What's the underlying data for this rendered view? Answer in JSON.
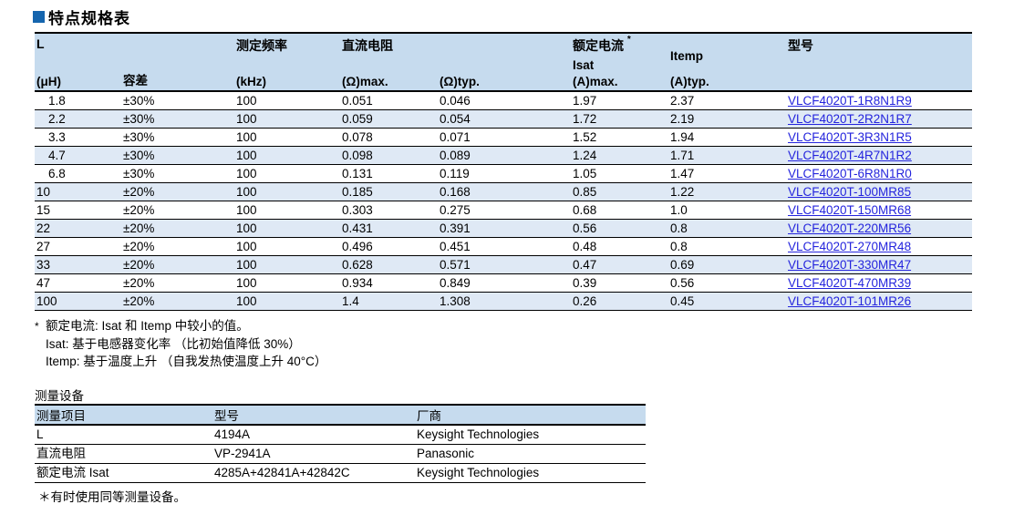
{
  "page_title": "特点规格表",
  "accent_color": "#1565ae",
  "link_color": "#2424dd",
  "spec_table": {
    "header": {
      "col1": {
        "line1": "L",
        "line3": "(μH)"
      },
      "col2": {
        "line3": "容差"
      },
      "col3": {
        "line1": "测定频率",
        "line3": "(kHz)"
      },
      "col4": {
        "line1": "直流电阻",
        "line3": "(Ω)max."
      },
      "col5": {
        "line3": "(Ω)typ."
      },
      "col6": {
        "line1": "额定电流",
        "star": "*",
        "line2": "Isat",
        "line3": "(A)max."
      },
      "col7": {
        "line2": "Itemp",
        "line3": "(A)typ."
      },
      "col8": {
        "line1": "型号"
      }
    },
    "rows": [
      [
        "1.8",
        "±30%",
        "100",
        "0.051",
        "0.046",
        "1.97",
        "2.37",
        "VLCF4020T-1R8N1R9"
      ],
      [
        "2.2",
        "±30%",
        "100",
        "0.059",
        "0.054",
        "1.72",
        "2.19",
        "VLCF4020T-2R2N1R7"
      ],
      [
        "3.3",
        "±30%",
        "100",
        "0.078",
        "0.071",
        "1.52",
        "1.94",
        "VLCF4020T-3R3N1R5"
      ],
      [
        "4.7",
        "±30%",
        "100",
        "0.098",
        "0.089",
        "1.24",
        "1.71",
        "VLCF4020T-4R7N1R2"
      ],
      [
        "6.8",
        "±30%",
        "100",
        "0.131",
        "0.119",
        "1.05",
        "1.47",
        "VLCF4020T-6R8N1R0"
      ],
      [
        "10",
        "±20%",
        "100",
        "0.185",
        "0.168",
        "0.85",
        "1.22",
        "VLCF4020T-100MR85"
      ],
      [
        "15",
        "±20%",
        "100",
        "0.303",
        "0.275",
        "0.68",
        "1.0",
        "VLCF4020T-150MR68"
      ],
      [
        "22",
        "±20%",
        "100",
        "0.431",
        "0.391",
        "0.56",
        "0.8",
        "VLCF4020T-220MR56"
      ],
      [
        "27",
        "±20%",
        "100",
        "0.496",
        "0.451",
        "0.48",
        "0.8",
        "VLCF4020T-270MR48"
      ],
      [
        "33",
        "±20%",
        "100",
        "0.628",
        "0.571",
        "0.47",
        "0.69",
        "VLCF4020T-330MR47"
      ],
      [
        "47",
        "±20%",
        "100",
        "0.934",
        "0.849",
        "0.39",
        "0.56",
        "VLCF4020T-470MR39"
      ],
      [
        "100",
        "±20%",
        "100",
        "1.4",
        "1.308",
        "0.26",
        "0.45",
        "VLCF4020T-101MR26"
      ]
    ]
  },
  "footnotes": {
    "star": "*",
    "line1": "额定电流: Isat 和 Itemp 中较小的值。",
    "line2": "Isat: 基于电感器变化率 （比初始值降低 30%）",
    "line3": "Itemp: 基于温度上升 （自我发热使温度上升 40°C）"
  },
  "equipment": {
    "heading": "测量设备",
    "headers": [
      "测量项目",
      "型号",
      "厂商"
    ],
    "rows": [
      [
        "L",
        "4194A",
        "Keysight Technologies"
      ],
      [
        "直流电阻",
        "VP-2941A",
        "Panasonic"
      ],
      [
        "额定电流 Isat",
        "4285A+42841A+42842C",
        "Keysight Technologies"
      ]
    ],
    "note": "＊有时使用同等测量设备。"
  }
}
